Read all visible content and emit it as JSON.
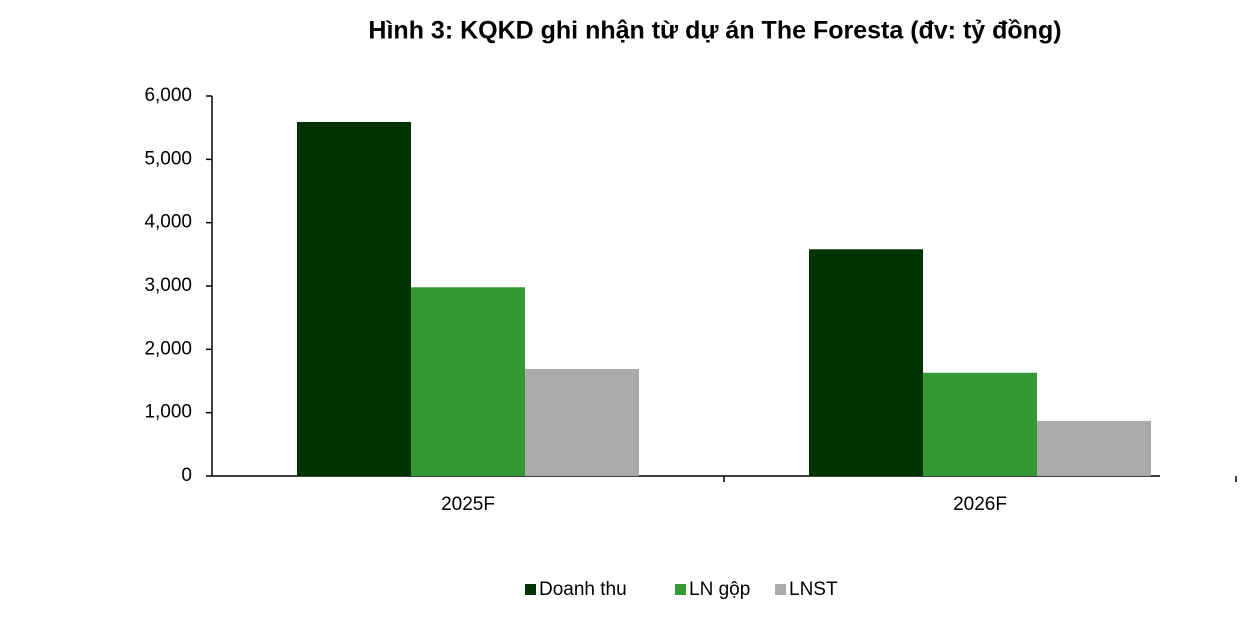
{
  "chart_data": {
    "type": "bar",
    "title": "Hình 3: KQKD ghi nhận từ dự án The Foresta (đv: tỷ đồng)",
    "categories": [
      "2025F",
      "2026F"
    ],
    "series": [
      {
        "name": "Doanh thu",
        "color": "#003300",
        "values": [
          5590,
          3580
        ]
      },
      {
        "name": "LN gộp",
        "color": "#339933",
        "values": [
          2980,
          1630
        ]
      },
      {
        "name": "LNST",
        "color": "#aaaaaa",
        "values": [
          1690,
          870
        ]
      }
    ],
    "ylim": [
      0,
      6000
    ],
    "yticks": [
      0,
      {
        "value": 1000,
        "label": "1,000"
      },
      {
        "value": 2000,
        "label": "2,000"
      },
      {
        "value": 3000,
        "label": "3,000"
      },
      {
        "value": 4000,
        "label": "4,000"
      },
      {
        "value": 5000,
        "label": "5,000"
      },
      {
        "value": 6000,
        "label": "6,000"
      }
    ],
    "grid": false,
    "legend": "bottom"
  }
}
